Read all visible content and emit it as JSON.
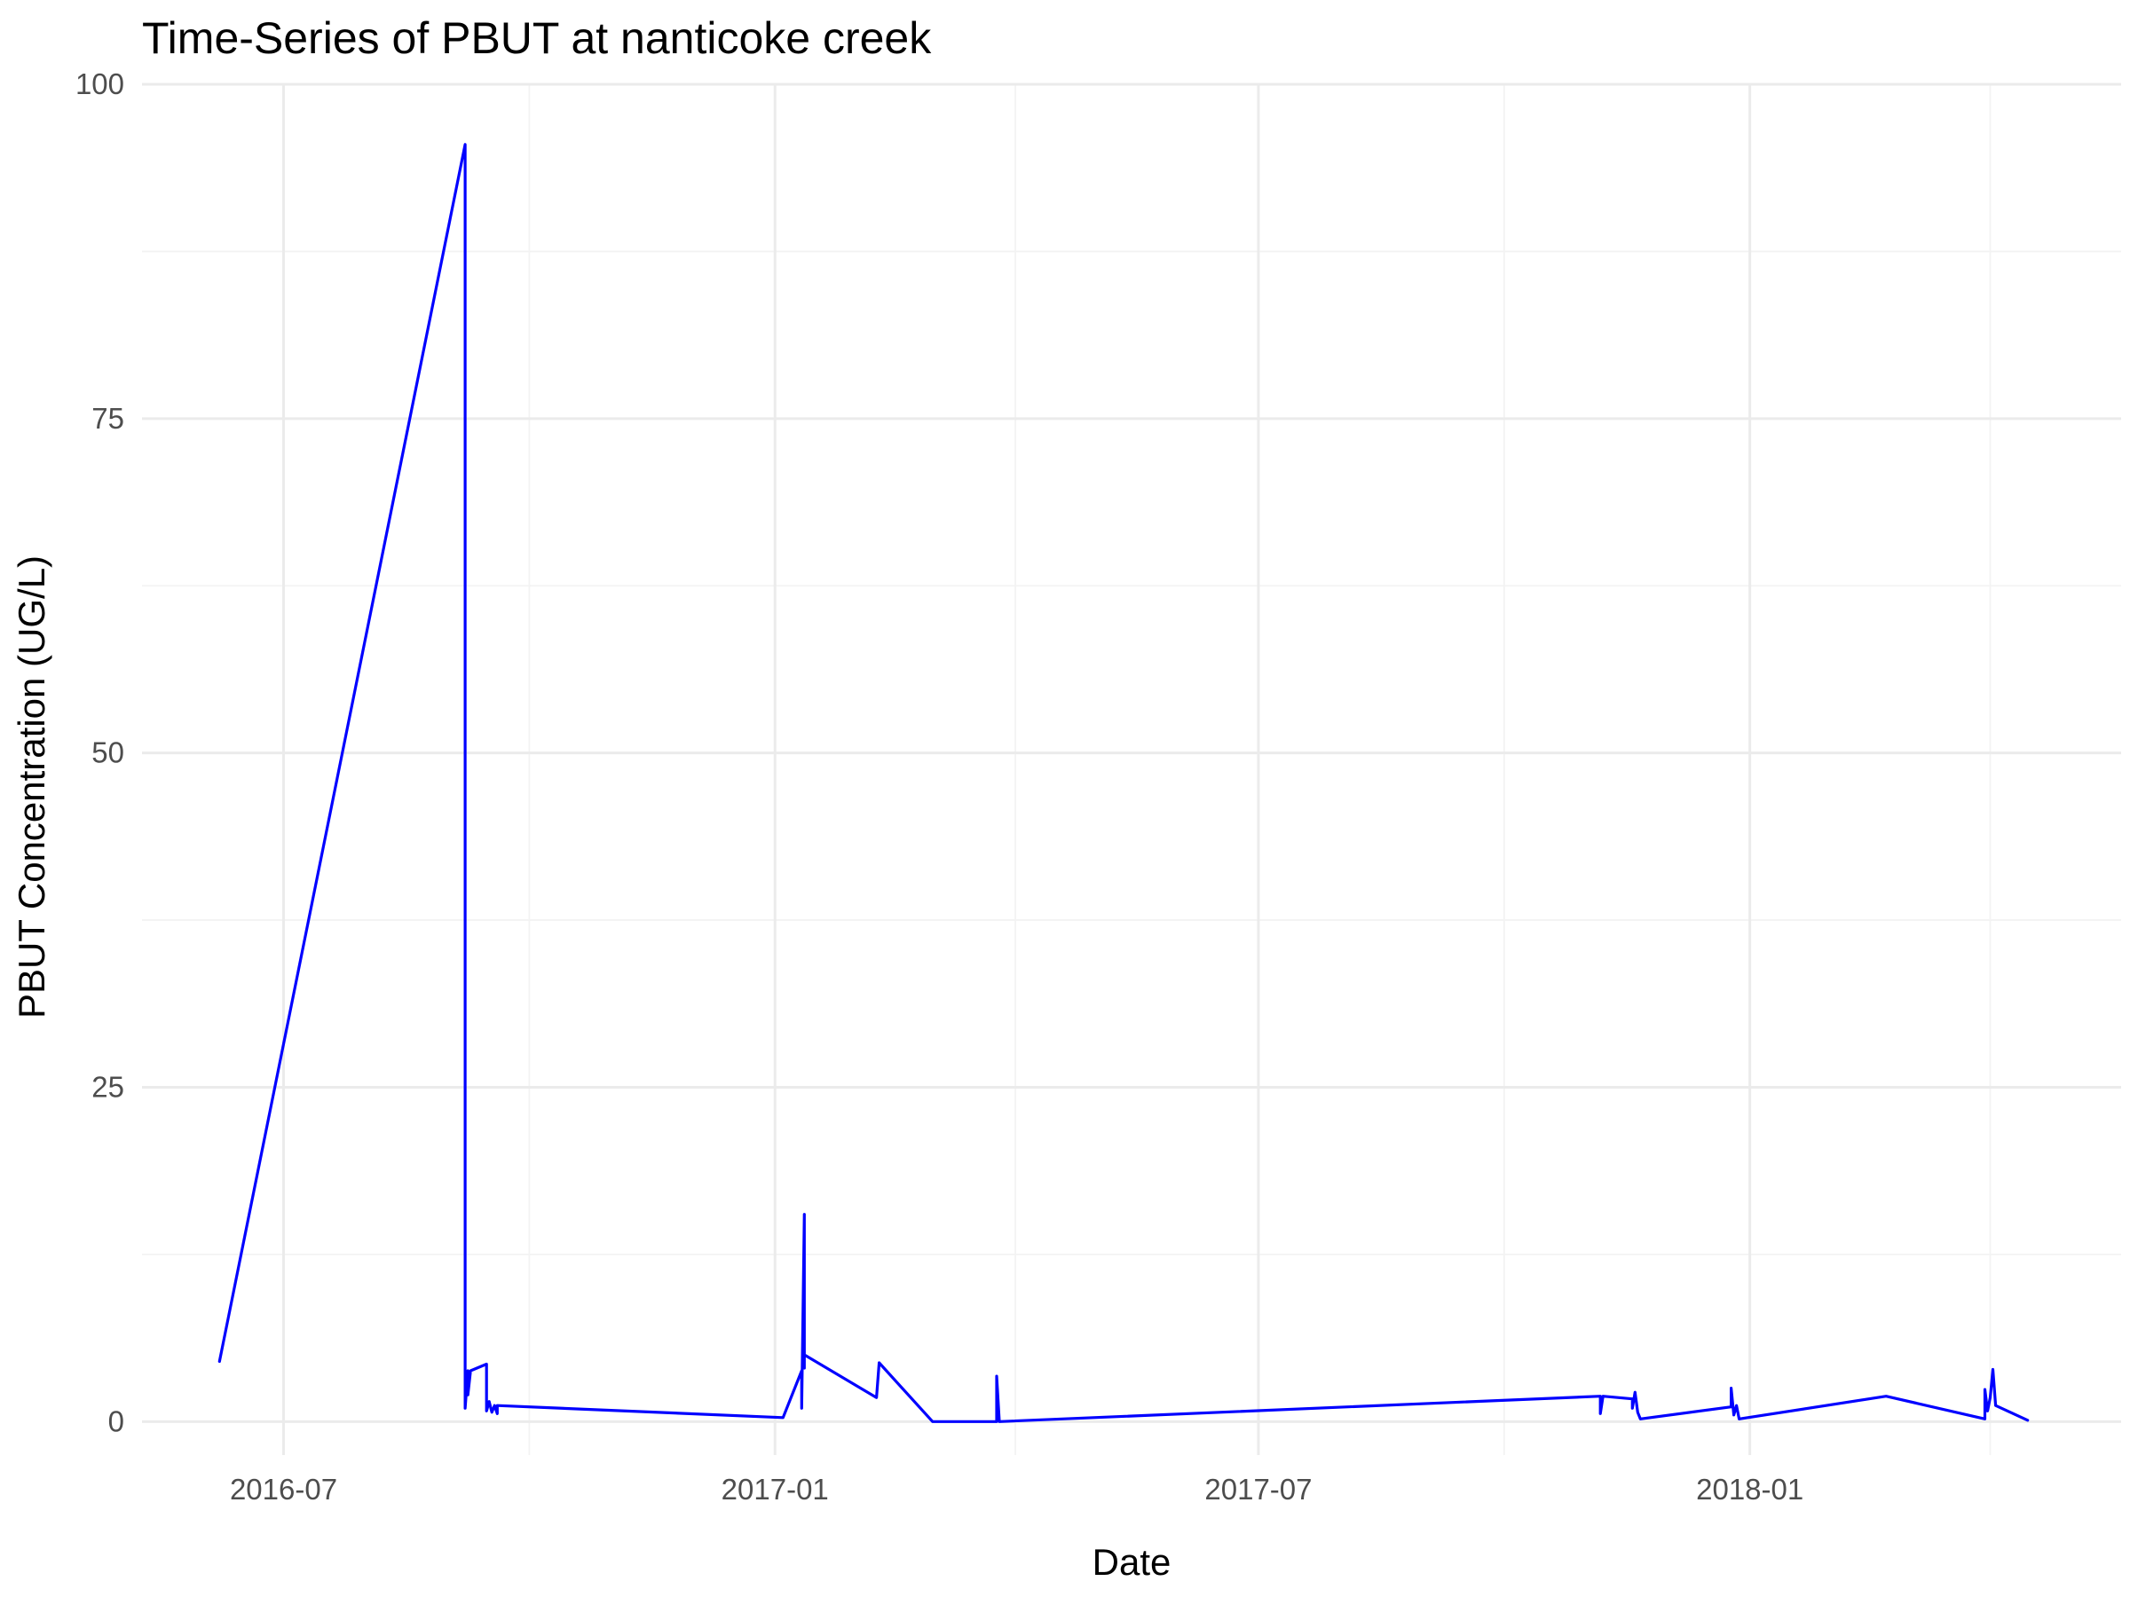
{
  "chart_data": {
    "type": "line",
    "title": "Time-Series of PBUT at nanticoke creek",
    "xlabel": "Date",
    "ylabel": "PBUT Concentration (UG/L)",
    "x_type": "date",
    "xlim": [
      "2016-05-09",
      "2018-05-20"
    ],
    "ylim": [
      -2.5,
      100
    ],
    "x_ticks": [
      "2016-07-01",
      "2017-01-01",
      "2017-07-01",
      "2018-01-01"
    ],
    "x_tick_labels": [
      "2016-07",
      "2017-01",
      "2017-07",
      "2018-01"
    ],
    "x_minor_ticks": [
      "2016-10-01",
      "2017-04-01",
      "2017-10-01",
      "2018-04-01"
    ],
    "y_ticks": [
      0,
      25,
      50,
      75,
      100
    ],
    "y_tick_labels": [
      "0",
      "25",
      "50",
      "75",
      "100"
    ],
    "y_minor_ticks": [
      12.5,
      37.5,
      62.5,
      87.5
    ],
    "grid": true,
    "legend": "none",
    "series": [
      {
        "color": "#0000ff",
        "x": [
          "2016-06-07",
          "2016-09-07",
          "2016-09-07",
          "2016-09-08",
          "2016-09-08",
          "2016-09-09",
          "2016-09-15",
          "2016-09-15",
          "2016-09-16",
          "2016-09-17",
          "2016-09-18",
          "2016-09-19",
          "2016-09-19",
          "2017-01-04",
          "2017-01-11",
          "2017-01-11",
          "2017-01-12",
          "2017-01-12",
          "2017-01-12",
          "2017-02-08",
          "2017-02-09",
          "2017-03-01",
          "2017-03-25",
          "2017-03-25",
          "2017-03-26",
          "2017-03-26",
          "2017-11-06",
          "2017-11-06",
          "2017-11-07",
          "2017-11-18",
          "2017-11-18",
          "2017-11-19",
          "2017-11-20",
          "2017-11-21",
          "2017-12-25",
          "2017-12-25",
          "2017-12-26",
          "2017-12-27",
          "2017-12-28",
          "2018-02-21",
          "2018-03-30",
          "2018-03-30",
          "2018-03-31",
          "2018-04-01",
          "2018-04-02",
          "2018-04-03",
          "2018-04-15"
        ],
        "y": [
          4.5,
          95.5,
          1.0,
          3.8,
          2.0,
          3.8,
          4.3,
          0.8,
          1.5,
          0.7,
          1.2,
          0.6,
          1.2,
          0.3,
          3.8,
          1.0,
          15.5,
          4.0,
          5.0,
          1.8,
          4.4,
          0.0,
          0.0,
          3.4,
          0.0,
          0.0,
          1.9,
          0.6,
          1.9,
          1.7,
          1.0,
          2.2,
          0.7,
          0.2,
          1.1,
          2.5,
          0.5,
          1.2,
          0.2,
          1.9,
          0.2,
          2.4,
          0.8,
          1.8,
          3.9,
          1.2,
          0.1
        ]
      }
    ]
  }
}
